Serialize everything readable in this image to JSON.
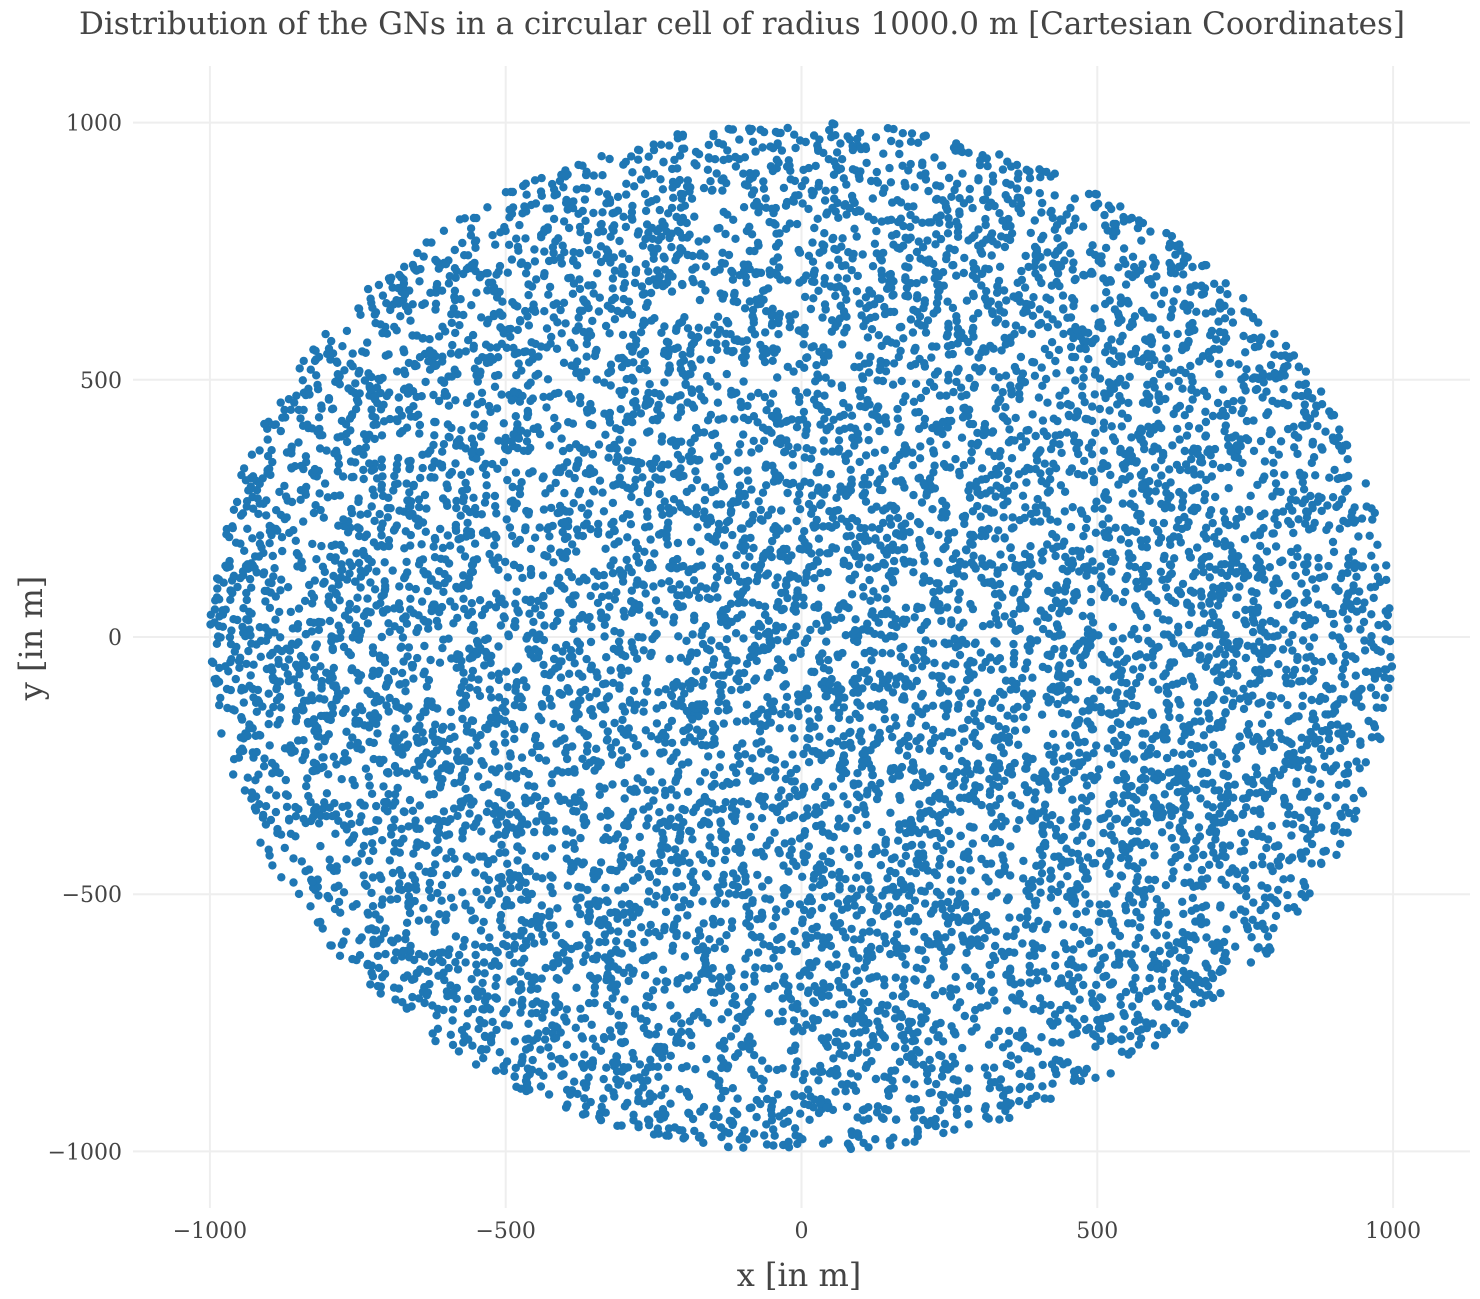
{
  "chart_data": {
    "type": "scatter",
    "title": "Distribution of the GNs in a circular cell of radius 1000.0 m [Cartesian Coordinates]",
    "xlabel": "x [in m]",
    "ylabel": "y [in m]",
    "xlim": [
      -1130,
      1130
    ],
    "ylim": [
      -1110,
      1110
    ],
    "x_ticks": [
      -1000,
      -500,
      0,
      500,
      1000
    ],
    "y_ticks": [
      -1000,
      -500,
      0,
      500,
      1000
    ],
    "x_tick_labels": [
      "−1000",
      "−500",
      "0",
      "500",
      "1000"
    ],
    "y_tick_labels": [
      "−1000",
      "−500",
      "0",
      "500",
      "1000"
    ],
    "grid": true,
    "legend": "none",
    "series": [
      {
        "distribution": "uniform-disk",
        "center": [
          0,
          0
        ],
        "radius": 1000.0,
        "count": 10000,
        "color": "#1f77b4"
      }
    ]
  }
}
